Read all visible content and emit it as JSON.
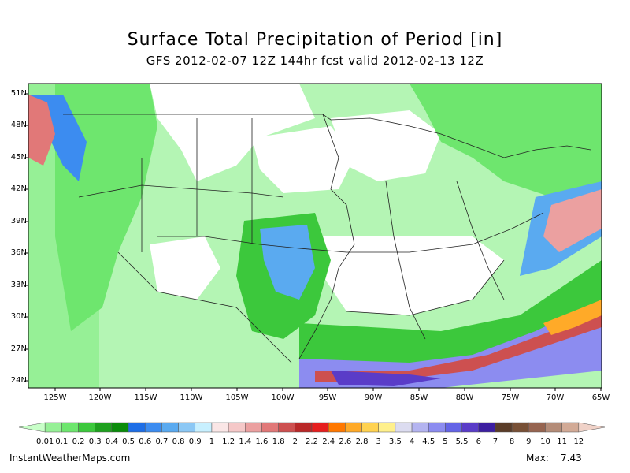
{
  "title": "Surface Total Precipitation of Period [in]",
  "subtitle": "GFS 2012-02-07 12Z 144hr fcst valid 2012-02-13 12Z",
  "lat_labels": [
    "51N",
    "48N",
    "45N",
    "42N",
    "39N",
    "36N",
    "33N",
    "30N",
    "27N",
    "24N"
  ],
  "lon_labels": [
    "125W",
    "120W",
    "115W",
    "110W",
    "105W",
    "100W",
    "95W",
    "90W",
    "85W",
    "80W",
    "75W",
    "70W",
    "65W"
  ],
  "legend": {
    "labels": [
      "0.01",
      "0.1",
      "0.2",
      "0.3",
      "0.4",
      "0.5",
      "0.6",
      "0.7",
      "0.8",
      "0.9",
      "1",
      "1.2",
      "1.4",
      "1.6",
      "1.8",
      "2",
      "2.2",
      "2.4",
      "2.6",
      "2.8",
      "3",
      "3.5",
      "4",
      "4.5",
      "5",
      "5.5",
      "6",
      "7",
      "8",
      "9",
      "10",
      "11",
      "12"
    ],
    "colors": [
      "#c8ffc8",
      "#96f096",
      "#6ee66e",
      "#3cc83c",
      "#1ea01e",
      "#0a8c0a",
      "#1e6ee6",
      "#3c8cf0",
      "#5aaaf0",
      "#8cc8f5",
      "#c8f0ff",
      "#fae6e6",
      "#f5c8c8",
      "#eba0a0",
      "#e17878",
      "#cd5050",
      "#b92828",
      "#e61e1e",
      "#ff7800",
      "#ffaa28",
      "#ffd250",
      "#fff08c",
      "#dcdcf0",
      "#b4b4f0",
      "#8c8cf0",
      "#6464e6",
      "#5a3cc8",
      "#3c1ea0",
      "#5a3c28",
      "#785036",
      "#966450",
      "#b48c78",
      "#d2aa96",
      "#f0d2c8"
    ]
  },
  "credit": "InstantWeatherMaps.com",
  "max_label": "Max:",
  "max_value": "7.43"
}
